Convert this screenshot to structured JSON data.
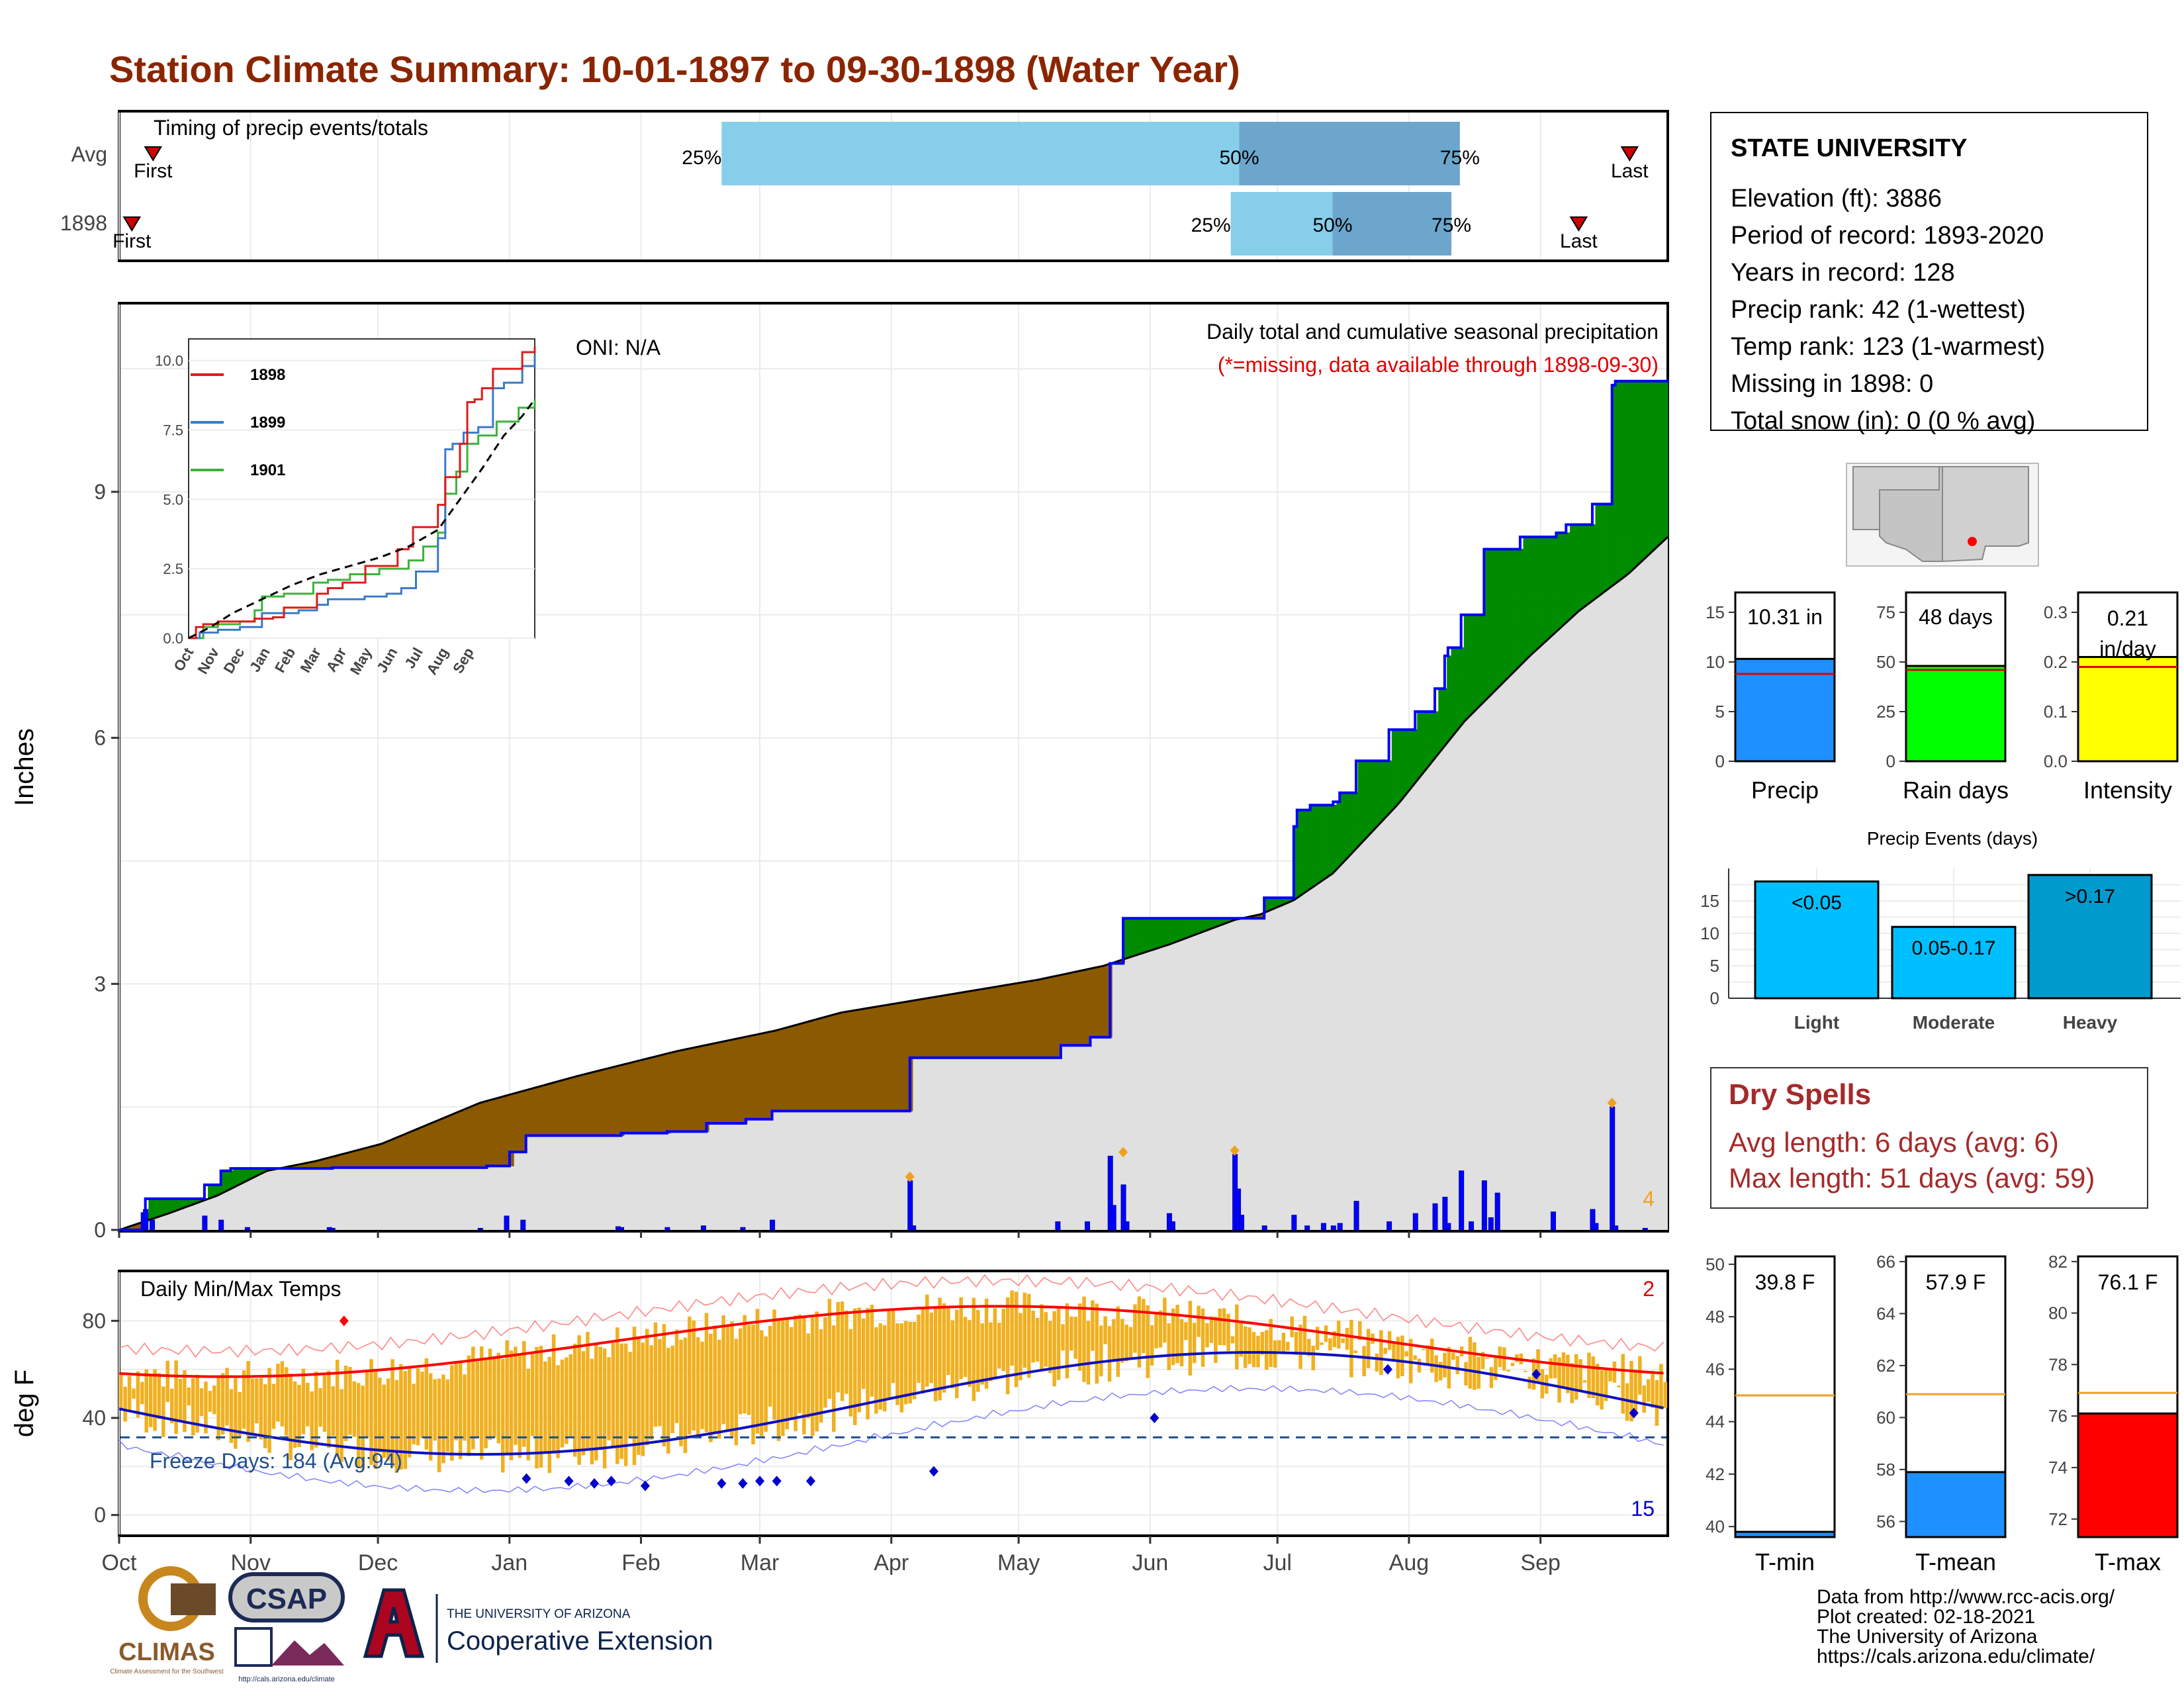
{
  "header": {
    "title": "Station Climate Summary: 10-01-1897 to 09-30-1898 (Water Year)"
  },
  "colors": {
    "title": "#8b2500",
    "brown": "#8b5a00",
    "green": "#008b00",
    "grey_fill": "#e0e0e0",
    "blue_line": "#0000ff",
    "orange_bars": "#f0b020",
    "red_line": "#ff0000",
    "navy_line": "#1010c0",
    "light_blue": "#87ceeb",
    "mid_blue": "#6ca6cd",
    "precip_blue": "#1e90ff",
    "rain_green": "#00ff00",
    "intensity_yellow": "#ffff00",
    "tmax_red": "#ff0000"
  },
  "timing_panel": {
    "title": "Timing of precip events/totals",
    "rows": [
      {
        "label": "Avg",
        "first": "First",
        "last": "Last",
        "p25": "25%",
        "p50": "50%",
        "p75": "75%"
      },
      {
        "label": "1898",
        "first": "First",
        "last": "Last",
        "p25": "25%",
        "p50": "50%",
        "p75": "75%"
      }
    ],
    "avg": {
      "first_day": 8,
      "p25_day": 142,
      "p50_day": 264,
      "p75_day": 316,
      "last_day": 356
    },
    "y1898": {
      "first_day": 3,
      "p25_day": 262,
      "p50_day": 286,
      "p75_day": 314,
      "last_day": 344
    }
  },
  "precip_panel": {
    "ylabel": "Inches",
    "oni": "ONI: N/A",
    "title_line1": "Daily total and cumulative seasonal precipitation",
    "title_line2": "(*=missing, data available through 1898-09-30)",
    "count_label": "4",
    "yticks": [
      "0",
      "3",
      "6",
      "9"
    ],
    "ymax": 11.3,
    "observed_cum_points": [
      [
        0,
        0
      ],
      [
        7,
        0.2
      ],
      [
        8,
        0.38
      ],
      [
        25,
        0.38
      ],
      [
        26,
        0.55
      ],
      [
        31,
        0.72
      ],
      [
        34,
        0.75
      ],
      [
        64,
        0.75
      ],
      [
        65,
        0.76
      ],
      [
        110,
        0.76
      ],
      [
        112,
        0.78
      ],
      [
        118,
        0.78
      ],
      [
        119,
        0.95
      ],
      [
        123,
        0.95
      ],
      [
        124,
        1.15
      ],
      [
        152,
        1.15
      ],
      [
        153,
        1.18
      ],
      [
        167,
        1.2
      ],
      [
        178,
        1.2
      ],
      [
        179,
        1.3
      ],
      [
        190,
        1.3
      ],
      [
        191,
        1.35
      ],
      [
        198,
        1.35
      ],
      [
        199,
        1.45
      ],
      [
        240,
        1.45
      ],
      [
        241,
        2.1
      ],
      [
        242,
        2.1
      ],
      [
        286,
        2.1
      ],
      [
        287,
        2.25
      ],
      [
        295,
        2.25
      ],
      [
        296,
        2.35
      ],
      [
        301,
        2.35
      ],
      [
        302,
        3.25
      ],
      [
        305,
        3.25
      ],
      [
        306,
        3.8
      ],
      [
        348,
        3.8
      ],
      [
        349,
        4.05
      ],
      [
        357,
        4.05
      ],
      [
        358,
        4.92
      ],
      [
        359,
        5.12
      ],
      [
        363,
        5.18
      ],
      [
        370,
        5.22
      ],
      [
        372,
        5.33
      ],
      [
        377,
        5.72
      ],
      [
        386,
        5.72
      ],
      [
        387,
        6.1
      ],
      [
        390,
        6.1
      ],
      [
        395,
        6.32
      ],
      [
        400,
        6.32
      ],
      [
        401,
        6.6
      ],
      [
        403,
        6.6
      ],
      [
        404,
        7.0
      ],
      [
        405,
        7.1
      ],
      [
        409,
        7.5
      ],
      [
        415,
        7.5
      ],
      [
        416,
        8.3
      ],
      [
        426,
        8.3
      ],
      [
        427,
        8.45
      ],
      [
        437,
        8.45
      ],
      [
        438,
        8.5
      ],
      [
        440,
        8.5
      ],
      [
        441,
        8.6
      ],
      [
        448,
        8.6
      ],
      [
        449,
        8.85
      ],
      [
        454,
        8.85
      ],
      [
        455,
        10.3
      ],
      [
        456,
        10.35
      ],
      [
        470,
        10.35
      ],
      [
        472,
        10.37
      ]
    ],
    "avg_cum_points": [
      [
        0,
        0
      ],
      [
        15,
        0.2
      ],
      [
        30,
        0.42
      ],
      [
        45,
        0.72
      ],
      [
        60,
        0.84
      ],
      [
        80,
        1.05
      ],
      [
        110,
        1.55
      ],
      [
        140,
        1.88
      ],
      [
        170,
        2.18
      ],
      [
        200,
        2.43
      ],
      [
        220,
        2.65
      ],
      [
        250,
        2.85
      ],
      [
        280,
        3.05
      ],
      [
        300,
        3.22
      ],
      [
        320,
        3.48
      ],
      [
        340,
        3.78
      ],
      [
        348,
        3.85
      ],
      [
        358,
        4.02
      ],
      [
        370,
        4.35
      ],
      [
        390,
        5.2
      ],
      [
        410,
        6.2
      ],
      [
        430,
        7.0
      ],
      [
        445,
        7.55
      ],
      [
        460,
        8.0
      ],
      [
        472,
        8.45
      ]
    ],
    "spikes": [
      [
        8,
        0.25
      ],
      [
        10,
        0.12
      ],
      [
        26,
        0.17
      ],
      [
        31,
        0.12
      ],
      [
        39,
        0.03
      ],
      [
        64,
        0.03
      ],
      [
        65,
        0.02
      ],
      [
        110,
        0.02
      ],
      [
        118,
        0.17
      ],
      [
        123,
        0.12
      ],
      [
        152,
        0.04
      ],
      [
        153,
        0.03
      ],
      [
        167,
        0.03
      ],
      [
        178,
        0.05
      ],
      [
        190,
        0.03
      ],
      [
        199,
        0.12
      ],
      [
        241,
        0.6
      ],
      [
        242,
        0.05
      ],
      [
        286,
        0.1
      ],
      [
        295,
        0.1
      ],
      [
        302,
        0.9
      ],
      [
        303,
        0.3
      ],
      [
        306,
        0.55
      ],
      [
        307,
        0.1
      ],
      [
        320,
        0.2
      ],
      [
        321,
        0.1
      ],
      [
        340,
        0.92
      ],
      [
        341,
        0.5
      ],
      [
        342,
        0.18
      ],
      [
        349,
        0.05
      ],
      [
        358,
        0.18
      ],
      [
        362,
        0.05
      ],
      [
        367,
        0.08
      ],
      [
        370,
        0.05
      ],
      [
        372,
        0.08
      ],
      [
        377,
        0.35
      ],
      [
        387,
        0.1
      ],
      [
        395,
        0.2
      ],
      [
        401,
        0.32
      ],
      [
        404,
        0.4
      ],
      [
        405,
        0.08
      ],
      [
        409,
        0.72
      ],
      [
        412,
        0.1
      ],
      [
        416,
        0.6
      ],
      [
        418,
        0.15
      ],
      [
        420,
        0.45
      ],
      [
        437,
        0.22
      ],
      [
        449,
        0.25
      ],
      [
        450,
        0.08
      ],
      [
        455,
        1.5
      ],
      [
        456,
        0.05
      ],
      [
        465,
        0.02
      ]
    ],
    "diamond_days": [
      [
        241,
        0.6
      ],
      [
        306,
        0.9
      ],
      [
        340,
        0.92
      ],
      [
        455,
        1.5
      ]
    ]
  },
  "inset": {
    "legend": [
      {
        "name": "1898",
        "color": "#dd1c1c"
      },
      {
        "name": "1899",
        "color": "#3a7bc8"
      },
      {
        "name": "1901",
        "color": "#3cb33c"
      }
    ],
    "yticks": [
      "0.0",
      "2.5",
      "5.0",
      "7.5",
      "10.0"
    ],
    "xticks": [
      "Oct",
      "Nov",
      "Dec",
      "Jan",
      "Feb",
      "Mar",
      "Apr",
      "May",
      "Jun",
      "Jul",
      "Aug",
      "Sep"
    ],
    "series_1898": [
      [
        0,
        0
      ],
      [
        10,
        0.4
      ],
      [
        20,
        0.5
      ],
      [
        40,
        0.6
      ],
      [
        60,
        0.6
      ],
      [
        90,
        0.7
      ],
      [
        115,
        0.75
      ],
      [
        130,
        1.1
      ],
      [
        150,
        1.1
      ],
      [
        175,
        1.6
      ],
      [
        190,
        1.8
      ],
      [
        200,
        1.8
      ],
      [
        210,
        2.0
      ],
      [
        230,
        2.0
      ],
      [
        241,
        2.6
      ],
      [
        270,
        2.6
      ],
      [
        285,
        3.2
      ],
      [
        300,
        3.3
      ],
      [
        306,
        4.0
      ],
      [
        340,
        4.8
      ],
      [
        350,
        5.8
      ],
      [
        358,
        5.8
      ],
      [
        370,
        7.0
      ],
      [
        380,
        8.5
      ],
      [
        390,
        8.6
      ],
      [
        400,
        9.0
      ],
      [
        415,
        9.7
      ],
      [
        455,
        10.3
      ],
      [
        472,
        10.5
      ]
    ],
    "series_1899": [
      [
        0,
        0
      ],
      [
        15,
        0.2
      ],
      [
        40,
        0.3
      ],
      [
        60,
        0.3
      ],
      [
        70,
        0.4
      ],
      [
        90,
        0.4
      ],
      [
        100,
        0.9
      ],
      [
        150,
        1.0
      ],
      [
        175,
        1.2
      ],
      [
        190,
        1.4
      ],
      [
        240,
        1.5
      ],
      [
        270,
        1.6
      ],
      [
        290,
        1.8
      ],
      [
        310,
        2.4
      ],
      [
        340,
        3.6
      ],
      [
        350,
        6.8
      ],
      [
        360,
        7.0
      ],
      [
        375,
        7.4
      ],
      [
        395,
        7.6
      ],
      [
        415,
        9.0
      ],
      [
        430,
        9.2
      ],
      [
        455,
        9.8
      ],
      [
        472,
        10.2
      ]
    ],
    "series_1901": [
      [
        0,
        0
      ],
      [
        20,
        0.4
      ],
      [
        40,
        0.5
      ],
      [
        70,
        0.6
      ],
      [
        90,
        1.0
      ],
      [
        100,
        1.5
      ],
      [
        130,
        1.6
      ],
      [
        170,
        2.0
      ],
      [
        190,
        2.1
      ],
      [
        220,
        2.3
      ],
      [
        260,
        2.5
      ],
      [
        300,
        2.8
      ],
      [
        320,
        3.3
      ],
      [
        340,
        3.8
      ],
      [
        350,
        5.2
      ],
      [
        365,
        6.0
      ],
      [
        380,
        7.0
      ],
      [
        395,
        7.3
      ],
      [
        420,
        7.8
      ],
      [
        450,
        8.3
      ],
      [
        472,
        8.6
      ]
    ],
    "series_avg": [
      [
        0,
        0
      ],
      [
        30,
        0.4
      ],
      [
        60,
        0.9
      ],
      [
        100,
        1.4
      ],
      [
        140,
        1.9
      ],
      [
        180,
        2.3
      ],
      [
        220,
        2.6
      ],
      [
        260,
        2.9
      ],
      [
        300,
        3.3
      ],
      [
        340,
        3.9
      ],
      [
        370,
        5.0
      ],
      [
        400,
        6.1
      ],
      [
        430,
        7.3
      ],
      [
        455,
        8.0
      ],
      [
        472,
        8.6
      ]
    ]
  },
  "temp_panel": {
    "ylabel": "deg F",
    "title": "Daily Min/Max Temps",
    "freeze_label": "Freeze Days: 184 (Avg:94)",
    "count_top": "2",
    "count_bottom": "15",
    "yticks": [
      "0",
      "40",
      "80"
    ],
    "freeze_line": 32,
    "ymin": -8,
    "ymax": 100
  },
  "x_axis": {
    "months": [
      "Oct",
      "Nov",
      "Dec",
      "Jan",
      "Feb",
      "Mar",
      "Apr",
      "May",
      "Jun",
      "Jul",
      "Aug",
      "Sep"
    ],
    "month_days": [
      0,
      31,
      61,
      92,
      123,
      151,
      182,
      212,
      243,
      273,
      304,
      335
    ],
    "year_days": 365
  },
  "station": {
    "name": "STATE UNIVERSITY",
    "lines": [
      "Elevation (ft): 3886",
      "Period of record: 1893-2020",
      "Years in record: 128",
      "Precip rank: 42 (1-wettest)",
      "Temp rank: 123 (1-warmest)",
      "Missing in 1898: 0",
      "Total snow (in): 0 (0 % avg)"
    ]
  },
  "summary_bars": [
    {
      "label": "Precip",
      "value_text": "10.31 in",
      "value": 10.31,
      "avg": 8.8,
      "ymax": 17,
      "yticks": [
        "0",
        "5",
        "10",
        "15"
      ],
      "tick_values": [
        0,
        5,
        10,
        15
      ],
      "color": "#1e90ff"
    },
    {
      "label": "Rain days",
      "value_text": "48 days",
      "value": 48,
      "avg": 46,
      "ymax": 85,
      "yticks": [
        "0",
        "25",
        "50",
        "75"
      ],
      "tick_values": [
        0,
        25,
        50,
        75
      ],
      "color": "#00ff00"
    },
    {
      "label": "Intensity",
      "value_text_1": "0.21",
      "value_text_2": "in/day",
      "value": 0.21,
      "avg": 0.19,
      "ymax": 0.34,
      "yticks": [
        "0.0",
        "0.1",
        "0.2",
        "0.3"
      ],
      "tick_values": [
        0,
        0.1,
        0.2,
        0.3
      ],
      "color": "#ffff00"
    }
  ],
  "precip_events": {
    "title": "Precip Events (days)",
    "yticks": [
      "0",
      "5",
      "10",
      "15"
    ],
    "bars": [
      {
        "label": "Light",
        "value_text": "<0.05",
        "value": 18,
        "color": "#00bfff"
      },
      {
        "label": "Moderate",
        "value_text": "0.05-0.17",
        "value": 11,
        "color": "#00bfff"
      },
      {
        "label": "Heavy",
        "value_text": ">0.17",
        "value": 19,
        "color": "#009acd"
      }
    ]
  },
  "dry_spells": {
    "title": "Dry Spells",
    "avg_length": "Avg length: 6 days (avg: 6)",
    "max_length": "Max length: 51 days (avg: 59)"
  },
  "temp_bars": [
    {
      "label": "T-min",
      "value_text": "39.8 F",
      "value": 39.8,
      "avg": 45.0,
      "ymin": 39.6,
      "ymax": 50.3,
      "yticks": [
        "40",
        "42",
        "44",
        "46",
        "48",
        "50"
      ],
      "tick_values": [
        40,
        42,
        44,
        46,
        48,
        50
      ],
      "color": "#1e90ff"
    },
    {
      "label": "T-mean",
      "value_text": "57.9 F",
      "value": 57.9,
      "avg": 60.9,
      "ymin": 55.4,
      "ymax": 66.2,
      "yticks": [
        "56",
        "58",
        "60",
        "62",
        "64",
        "66"
      ],
      "tick_values": [
        56,
        58,
        60,
        62,
        64,
        66
      ],
      "color": "#1e90ff"
    },
    {
      "label": "T-max",
      "value_text": "76.1 F",
      "value": 76.1,
      "avg": 76.9,
      "ymin": 71.3,
      "ymax": 82.2,
      "yticks": [
        "72",
        "74",
        "76",
        "78",
        "80",
        "82"
      ],
      "tick_values": [
        72,
        74,
        76,
        78,
        80,
        82
      ],
      "color": "#ff0000"
    }
  ],
  "footer": {
    "lines": [
      "Data from http://www.rcc-acis.org/",
      "Plot created: 02-18-2021",
      "The University of Arizona",
      "https://cals.arizona.edu/climate/"
    ]
  },
  "logos": {
    "climas": "CLIMAS",
    "climas_sub": "Climate Assessment for the Southwest",
    "csap": "CSAP",
    "csap_url": "http://cals.arizona.edu/climate",
    "ua_small": "THE UNIVERSITY OF ARIZONA",
    "ua_big": "Cooperative Extension"
  },
  "chart_data": {
    "type": "area",
    "title": "Station Climate Summary: 10-01-1897 to 09-30-1898 (Water Year)",
    "ylabel": "Inches",
    "series": [
      {
        "name": "1898",
        "total": 10.31
      },
      {
        "name": "1899",
        "total": 10.2
      },
      {
        "name": "1901",
        "total": 8.6
      }
    ]
  }
}
